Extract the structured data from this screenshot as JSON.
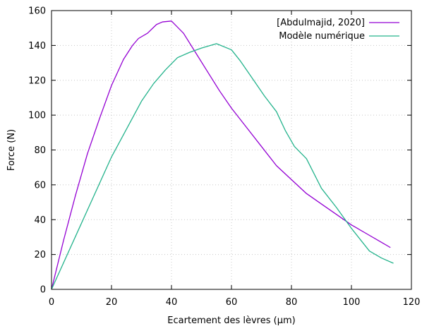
{
  "chart_data": {
    "type": "line",
    "xlabel": "Ecartement des lèvres (µm)",
    "ylabel": "Force (N)",
    "xlim": [
      0,
      120
    ],
    "ylim": [
      0,
      160
    ],
    "xticks": [
      0,
      20,
      40,
      60,
      80,
      100,
      120
    ],
    "yticks": [
      0,
      20,
      40,
      60,
      80,
      100,
      120,
      140,
      160
    ],
    "grid": true,
    "legend_position": "top-right",
    "series": [
      {
        "name": "[Abdulmajid, 2020]",
        "color": "#9400d3",
        "x": [
          0,
          4,
          8,
          12,
          16,
          20,
          24,
          27,
          29,
          32,
          35,
          37,
          40,
          44,
          48,
          52,
          56,
          60,
          65,
          70,
          75,
          80,
          85,
          90,
          95,
          100,
          105,
          110,
          113
        ],
        "y": [
          0,
          28,
          54,
          78,
          98,
          117,
          132,
          140,
          144,
          147,
          152,
          153.5,
          154,
          147,
          136,
          125,
          114,
          104,
          93,
          82,
          71,
          63,
          55,
          49,
          43,
          37,
          32,
          27,
          24
        ]
      },
      {
        "name": "Modèle numérique",
        "color": "#24b38c",
        "x": [
          0,
          10,
          20,
          25,
          30,
          34,
          38,
          42,
          46,
          50,
          55,
          60,
          63,
          67,
          71,
          75,
          78,
          81,
          85,
          90,
          95,
          100,
          106,
          110,
          114
        ],
        "y": [
          0,
          38,
          76,
          92,
          108,
          118,
          126,
          133,
          136,
          138.5,
          141,
          137.5,
          131,
          121,
          111,
          102,
          91,
          82,
          75,
          58,
          47,
          35,
          22,
          18,
          15
        ]
      }
    ]
  }
}
